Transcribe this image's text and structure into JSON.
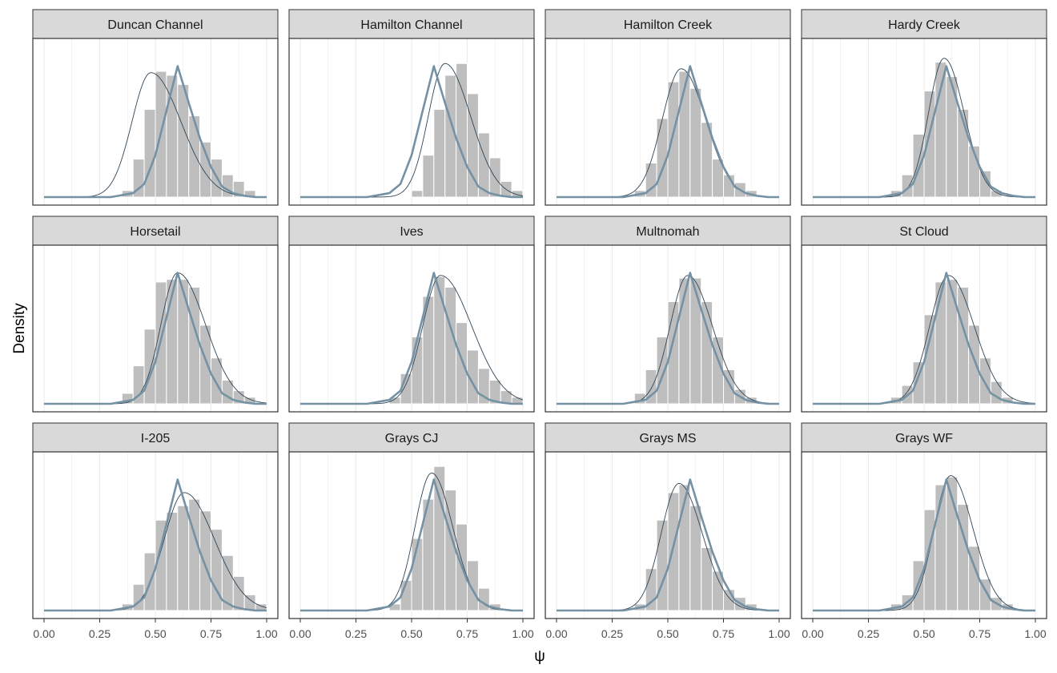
{
  "chart_data": {
    "type": "histogram",
    "layout": "facet-grid 3 rows x 4 columns",
    "xlabel": "ψ",
    "ylabel": "Density",
    "xlim": [
      0,
      1
    ],
    "x_ticks": [
      "0.00",
      "0.25",
      "0.50",
      "0.75",
      "1.00"
    ],
    "y_ticks_shown": false,
    "grid": "vertical major and minor lines",
    "bin_width": 0.05,
    "bin_left_edges": [
      0.35,
      0.4,
      0.45,
      0.5,
      0.55,
      0.6,
      0.65,
      0.7,
      0.75,
      0.8,
      0.85,
      0.9,
      0.95
    ],
    "colors": {
      "bars": "#bebebe",
      "density": "#2f4556",
      "reference": "#7591a4",
      "strip_fill": "#d9d9d9",
      "panel_border": "#333333",
      "grid": "#ebebeb"
    },
    "reference_curve": {
      "description": "shared prior density (thick line), identical in every panel",
      "x": [
        0.0,
        0.3,
        0.4,
        0.45,
        0.5,
        0.55,
        0.6,
        0.65,
        0.7,
        0.75,
        0.8,
        0.85,
        0.9,
        0.95,
        1.0
      ],
      "value": [
        0.0,
        0.0,
        0.03,
        0.1,
        0.32,
        0.66,
        1.0,
        0.72,
        0.45,
        0.23,
        0.08,
        0.03,
        0.01,
        0.0,
        0.0
      ]
    },
    "panels": [
      {
        "title": "Duncan Channel",
        "bars": [
          0.05,
          0.29,
          0.67,
          0.96,
          0.93,
          0.86,
          0.62,
          0.42,
          0.29,
          0.17,
          0.12,
          0.05,
          0.0
        ],
        "density": {
          "mode": 0.48,
          "sd_left": 0.085,
          "sd_right": 0.135,
          "peak": 0.95
        }
      },
      {
        "title": "Hamilton Channel",
        "bars": [
          0.0,
          0.0,
          0.0,
          0.05,
          0.32,
          0.67,
          0.93,
          1.02,
          0.79,
          0.49,
          0.3,
          0.12,
          0.05
        ],
        "density": {
          "mode": 0.65,
          "sd_left": 0.075,
          "sd_right": 0.115,
          "peak": 1.02
        }
      },
      {
        "title": "Hamilton Creek",
        "bars": [
          0.05,
          0.26,
          0.6,
          0.88,
          0.96,
          0.83,
          0.57,
          0.29,
          0.17,
          0.11,
          0.05,
          0.0,
          0.0
        ],
        "density": {
          "mode": 0.56,
          "sd_left": 0.085,
          "sd_right": 0.11,
          "peak": 0.98
        }
      },
      {
        "title": "Hardy Creek",
        "bars": [
          0.05,
          0.17,
          0.48,
          0.81,
          1.03,
          0.92,
          0.67,
          0.39,
          0.2,
          0.05,
          0.0,
          0.0,
          0.0
        ],
        "density": {
          "mode": 0.59,
          "sd_left": 0.07,
          "sd_right": 0.09,
          "peak": 1.06
        }
      },
      {
        "title": "Horsetail",
        "bars": [
          0.08,
          0.29,
          0.57,
          0.93,
          0.95,
          0.95,
          0.89,
          0.6,
          0.35,
          0.18,
          0.1,
          0.05,
          0.0
        ],
        "density": {
          "mode": 0.6,
          "sd_left": 0.075,
          "sd_right": 0.125,
          "peak": 1.0
        }
      },
      {
        "title": "Ives",
        "bars": [
          0.0,
          0.05,
          0.23,
          0.51,
          0.82,
          0.97,
          0.89,
          0.62,
          0.41,
          0.27,
          0.18,
          0.1,
          0.05
        ],
        "density": {
          "mode": 0.63,
          "sd_left": 0.08,
          "sd_right": 0.14,
          "peak": 0.98
        }
      },
      {
        "title": "Multnomah",
        "bars": [
          0.08,
          0.26,
          0.51,
          0.78,
          0.96,
          0.96,
          0.78,
          0.51,
          0.26,
          0.11,
          0.05,
          0.0,
          0.0
        ],
        "density": {
          "mode": 0.59,
          "sd_left": 0.08,
          "sd_right": 0.11,
          "peak": 0.98
        }
      },
      {
        "title": "St Cloud",
        "bars": [
          0.05,
          0.14,
          0.32,
          0.68,
          0.93,
          0.95,
          0.89,
          0.6,
          0.35,
          0.17,
          0.05,
          0.0,
          0.0
        ],
        "density": {
          "mode": 0.61,
          "sd_left": 0.085,
          "sd_right": 0.115,
          "peak": 0.98
        }
      },
      {
        "title": "I-205",
        "bars": [
          0.05,
          0.2,
          0.44,
          0.69,
          0.75,
          0.8,
          0.85,
          0.76,
          0.62,
          0.42,
          0.26,
          0.12,
          0.05
        ],
        "density": {
          "mode": 0.63,
          "sd_left": 0.09,
          "sd_right": 0.135,
          "peak": 0.9
        }
      },
      {
        "title": "Grays CJ",
        "bars": [
          0.0,
          0.05,
          0.23,
          0.55,
          0.85,
          1.1,
          0.92,
          0.66,
          0.38,
          0.17,
          0.05,
          0.0,
          0.0
        ],
        "density": {
          "mode": 0.59,
          "sd_left": 0.075,
          "sd_right": 0.095,
          "peak": 1.05
        }
      },
      {
        "title": "Grays MS",
        "bars": [
          0.05,
          0.32,
          0.69,
          0.9,
          0.96,
          0.8,
          0.48,
          0.3,
          0.16,
          0.1,
          0.05,
          0.0,
          0.0
        ],
        "density": {
          "mode": 0.55,
          "sd_left": 0.08,
          "sd_right": 0.105,
          "peak": 0.97
        }
      },
      {
        "title": "Grays WF",
        "bars": [
          0.05,
          0.12,
          0.38,
          0.77,
          0.96,
          1.02,
          0.81,
          0.49,
          0.24,
          0.1,
          0.05,
          0.0,
          0.0
        ],
        "density": {
          "mode": 0.62,
          "sd_left": 0.075,
          "sd_right": 0.1,
          "peak": 1.03
        }
      }
    ]
  }
}
